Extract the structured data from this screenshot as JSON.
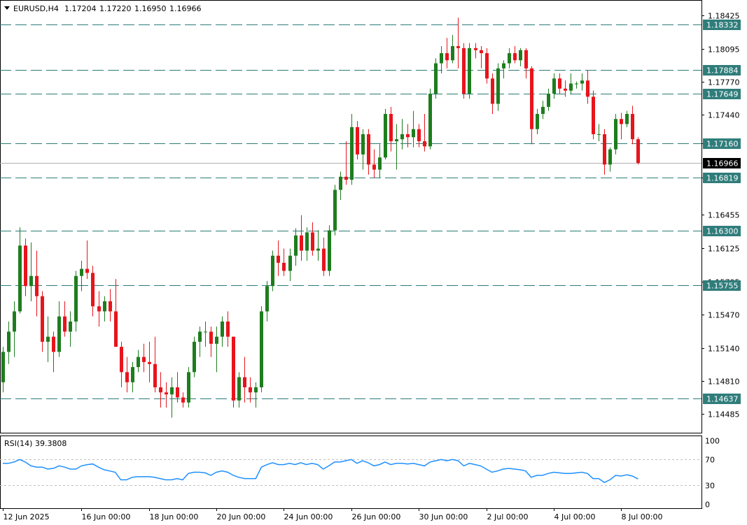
{
  "header": {
    "menu_icon": "triangle-down-icon",
    "symbol": "EURUSD,H4",
    "open": "1.17204",
    "high": "1.17220",
    "low": "1.16950",
    "close": "1.16966"
  },
  "colors": {
    "bull": "#1e7d1e",
    "bear": "#e8141c",
    "level": "#2f7d7b",
    "rsi": "#1e90ff",
    "current_price_tag": "#000000"
  },
  "price_axis": {
    "min": 1.1435,
    "max": 1.1852,
    "ticks": [
      "1.18425",
      "1.18095",
      "1.17770",
      "1.17440",
      "1.17160",
      "1.16819",
      "1.16455",
      "1.16125",
      "1.15795",
      "1.15470",
      "1.15140",
      "1.14810",
      "1.14485"
    ]
  },
  "levels": [
    "1.18332",
    "1.17884",
    "1.17649",
    "1.17160",
    "1.16819",
    "1.16300",
    "1.15755",
    "1.14637"
  ],
  "current_price": "1.16966",
  "rsi": {
    "label": "RSI(14) 39.3808",
    "ticks": [
      "100",
      "70",
      "30",
      "0"
    ],
    "levels": [
      70,
      30
    ]
  },
  "time_axis": {
    "labels": [
      "12 Jun 2025",
      "16 Jun 00:00",
      "18 Jun 00:00",
      "20 Jun 00:00",
      "24 Jun 00:00",
      "26 Jun 00:00",
      "30 Jun 00:00",
      "2 Jul 00:00",
      "4 Jul 00:00",
      "8 Jul 00:00"
    ],
    "label_bar_index": [
      0,
      14,
      26,
      38,
      50,
      62,
      74,
      86,
      98,
      110
    ]
  },
  "chart_data": {
    "type": "candlestick",
    "title": "EURUSD,H4",
    "ylim": [
      1.1435,
      1.1852
    ],
    "ohlc": [
      [
        1.148,
        1.1515,
        1.147,
        1.151
      ],
      [
        1.151,
        1.154,
        1.1498,
        1.153
      ],
      [
        1.153,
        1.156,
        1.1505,
        1.155
      ],
      [
        1.155,
        1.1633,
        1.1548,
        1.1615
      ],
      [
        1.1615,
        1.1622,
        1.1565,
        1.1575
      ],
      [
        1.1575,
        1.1618,
        1.156,
        1.1585
      ],
      [
        1.1585,
        1.161,
        1.1545,
        1.1565
      ],
      [
        1.1565,
        1.157,
        1.151,
        1.152
      ],
      [
        1.152,
        1.1545,
        1.15,
        1.1525
      ],
      [
        1.1525,
        1.153,
        1.149,
        1.151
      ],
      [
        1.151,
        1.156,
        1.1505,
        1.1545
      ],
      [
        1.1545,
        1.156,
        1.1525,
        1.153
      ],
      [
        1.153,
        1.155,
        1.1515,
        1.154
      ],
      [
        1.154,
        1.159,
        1.153,
        1.1585
      ],
      [
        1.1585,
        1.16,
        1.157,
        1.1592
      ],
      [
        1.1592,
        1.162,
        1.1582,
        1.1588
      ],
      [
        1.1588,
        1.1595,
        1.1545,
        1.1555
      ],
      [
        1.1555,
        1.157,
        1.1535,
        1.155
      ],
      [
        1.155,
        1.1565,
        1.154,
        1.156
      ],
      [
        1.156,
        1.1572,
        1.154,
        1.155
      ],
      [
        1.155,
        1.1582,
        1.1515,
        1.1515
      ],
      [
        1.1515,
        1.152,
        1.1475,
        1.149
      ],
      [
        1.149,
        1.1505,
        1.147,
        1.148
      ],
      [
        1.148,
        1.15,
        1.147,
        1.1495
      ],
      [
        1.1495,
        1.1512,
        1.149,
        1.1505
      ],
      [
        1.1505,
        1.1518,
        1.149,
        1.15
      ],
      [
        1.15,
        1.152,
        1.148,
        1.1498
      ],
      [
        1.1498,
        1.1525,
        1.147,
        1.1475
      ],
      [
        1.1475,
        1.149,
        1.1455,
        1.147
      ],
      [
        1.147,
        1.148,
        1.1455,
        1.1468
      ],
      [
        1.1468,
        1.1485,
        1.1445,
        1.1475
      ],
      [
        1.1475,
        1.149,
        1.146,
        1.1465
      ],
      [
        1.1465,
        1.147,
        1.1455,
        1.146
      ],
      [
        1.146,
        1.1495,
        1.1455,
        1.149
      ],
      [
        1.149,
        1.1525,
        1.1485,
        1.152
      ],
      [
        1.152,
        1.1535,
        1.1505,
        1.153
      ],
      [
        1.153,
        1.154,
        1.1515,
        1.153
      ],
      [
        1.153,
        1.1535,
        1.1505,
        1.1518
      ],
      [
        1.1518,
        1.1535,
        1.149,
        1.1525
      ],
      [
        1.1525,
        1.1545,
        1.1515,
        1.154
      ],
      [
        1.154,
        1.155,
        1.1515,
        1.1525
      ],
      [
        1.1525,
        1.1525,
        1.1455,
        1.1462
      ],
      [
        1.1462,
        1.149,
        1.1455,
        1.1485
      ],
      [
        1.1485,
        1.1505,
        1.146,
        1.1475
      ],
      [
        1.1475,
        1.1485,
        1.146,
        1.147
      ],
      [
        1.147,
        1.148,
        1.1455,
        1.1475
      ],
      [
        1.1475,
        1.1555,
        1.147,
        1.155
      ],
      [
        1.155,
        1.158,
        1.154,
        1.1575
      ],
      [
        1.1575,
        1.161,
        1.157,
        1.1605
      ],
      [
        1.1605,
        1.162,
        1.1585,
        1.1598
      ],
      [
        1.1598,
        1.1612,
        1.1585,
        1.159
      ],
      [
        1.159,
        1.1612,
        1.158,
        1.1605
      ],
      [
        1.1605,
        1.1632,
        1.1595,
        1.1625
      ],
      [
        1.1625,
        1.1645,
        1.16,
        1.161
      ],
      [
        1.161,
        1.1633,
        1.16,
        1.1628
      ],
      [
        1.1628,
        1.1638,
        1.1605,
        1.161
      ],
      [
        1.161,
        1.163,
        1.16,
        1.1612
      ],
      [
        1.1612,
        1.1623,
        1.1585,
        1.159
      ],
      [
        1.159,
        1.1635,
        1.1585,
        1.163
      ],
      [
        1.163,
        1.1675,
        1.1625,
        1.167
      ],
      [
        1.167,
        1.1688,
        1.166,
        1.1683
      ],
      [
        1.1683,
        1.1718,
        1.1675,
        1.168
      ],
      [
        1.168,
        1.1745,
        1.1675,
        1.1732
      ],
      [
        1.1732,
        1.1738,
        1.17,
        1.1705
      ],
      [
        1.1705,
        1.173,
        1.169,
        1.1725
      ],
      [
        1.1725,
        1.173,
        1.1685,
        1.1695
      ],
      [
        1.1695,
        1.171,
        1.1682,
        1.169
      ],
      [
        1.169,
        1.1715,
        1.1682,
        1.1702
      ],
      [
        1.1702,
        1.175,
        1.17,
        1.1745
      ],
      [
        1.1745,
        1.1752,
        1.1708,
        1.1718
      ],
      [
        1.1718,
        1.1735,
        1.169,
        1.172
      ],
      [
        1.172,
        1.174,
        1.171,
        1.1725
      ],
      [
        1.1725,
        1.1735,
        1.1712,
        1.1722
      ],
      [
        1.1722,
        1.1748,
        1.1712,
        1.173
      ],
      [
        1.173,
        1.1735,
        1.1712,
        1.1718
      ],
      [
        1.1718,
        1.1745,
        1.1708,
        1.1713
      ],
      [
        1.1713,
        1.177,
        1.171,
        1.1765
      ],
      [
        1.1765,
        1.18,
        1.176,
        1.1795
      ],
      [
        1.1795,
        1.1812,
        1.1785,
        1.1805
      ],
      [
        1.1805,
        1.182,
        1.179,
        1.1798
      ],
      [
        1.1798,
        1.1823,
        1.1795,
        1.1812
      ],
      [
        1.1812,
        1.184,
        1.179,
        1.181
      ],
      [
        1.181,
        1.1815,
        1.176,
        1.1765
      ],
      [
        1.1765,
        1.1815,
        1.176,
        1.181
      ],
      [
        1.181,
        1.1815,
        1.18,
        1.1808
      ],
      [
        1.1808,
        1.1812,
        1.179,
        1.1805
      ],
      [
        1.1805,
        1.181,
        1.1775,
        1.178
      ],
      [
        1.178,
        1.1785,
        1.1745,
        1.1755
      ],
      [
        1.1755,
        1.1795,
        1.1748,
        1.179
      ],
      [
        1.179,
        1.1798,
        1.178,
        1.1795
      ],
      [
        1.1795,
        1.181,
        1.179,
        1.1805
      ],
      [
        1.1805,
        1.1812,
        1.1795,
        1.1798
      ],
      [
        1.1798,
        1.181,
        1.1792,
        1.1808
      ],
      [
        1.1808,
        1.181,
        1.178,
        1.179
      ],
      [
        1.179,
        1.1792,
        1.1715,
        1.173
      ],
      [
        1.173,
        1.175,
        1.1725,
        1.1745
      ],
      [
        1.1745,
        1.1758,
        1.174,
        1.1752
      ],
      [
        1.1752,
        1.177,
        1.1748,
        1.1765
      ],
      [
        1.1765,
        1.1785,
        1.176,
        1.178
      ],
      [
        1.178,
        1.1785,
        1.1765,
        1.177
      ],
      [
        1.177,
        1.1778,
        1.1762,
        1.1768
      ],
      [
        1.1768,
        1.1785,
        1.1765,
        1.1775
      ],
      [
        1.1775,
        1.1777,
        1.177,
        1.1775
      ],
      [
        1.1775,
        1.1785,
        1.1768,
        1.1778
      ],
      [
        1.1778,
        1.1788,
        1.1755,
        1.1762
      ],
      [
        1.1762,
        1.1768,
        1.172,
        1.1725
      ],
      [
        1.1725,
        1.1735,
        1.1718,
        1.1725
      ],
      [
        1.1725,
        1.173,
        1.1685,
        1.1695
      ],
      [
        1.1695,
        1.1712,
        1.1688,
        1.171
      ],
      [
        1.171,
        1.1745,
        1.1705,
        1.174
      ],
      [
        1.174,
        1.1746,
        1.172,
        1.1735
      ],
      [
        1.1735,
        1.1748,
        1.1732,
        1.1745
      ],
      [
        1.1745,
        1.1753,
        1.1715,
        1.172
      ],
      [
        1.172,
        1.1722,
        1.1695,
        1.16966
      ]
    ],
    "rsi": [
      64,
      64,
      66,
      70,
      66,
      60,
      58,
      58,
      55,
      56,
      60,
      58,
      55,
      55,
      60,
      62,
      63,
      58,
      54,
      52,
      50,
      38,
      38,
      42,
      43,
      43,
      43,
      42,
      40,
      38,
      38,
      40,
      38,
      48,
      50,
      50,
      49,
      45,
      50,
      52,
      50,
      45,
      42,
      40,
      40,
      40,
      58,
      62,
      65,
      62,
      62,
      64,
      62,
      65,
      62,
      64,
      62,
      55,
      60,
      66,
      66,
      68,
      70,
      64,
      68,
      65,
      60,
      62,
      66,
      62,
      64,
      64,
      63,
      64,
      62,
      60,
      66,
      68,
      70,
      68,
      70,
      68,
      60,
      64,
      62,
      60,
      55,
      50,
      52,
      55,
      56,
      55,
      54,
      52,
      42,
      45,
      45,
      48,
      50,
      49,
      48,
      48,
      49,
      50,
      48,
      40,
      40,
      34,
      38,
      45,
      44,
      46,
      44,
      39.3808
    ]
  }
}
